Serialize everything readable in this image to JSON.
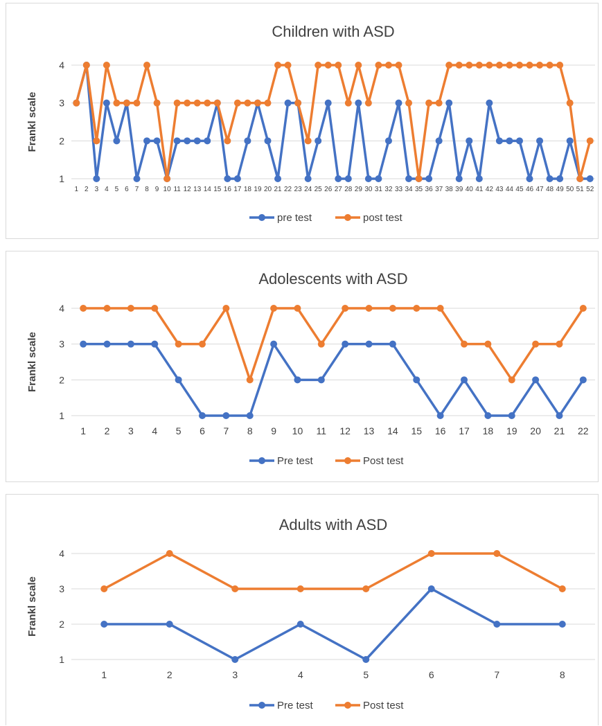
{
  "colors": {
    "pre": "#4472C4",
    "post": "#ED7D31",
    "grid": "#D9D9D9",
    "text": "#404040"
  },
  "chart_data": [
    {
      "type": "line",
      "title": "Children with ASD",
      "xlabel": "",
      "ylabel": "Frankl scale",
      "ylim": [
        1,
        4
      ],
      "yticks": [
        "1",
        "2",
        "3",
        "4"
      ],
      "grid": true,
      "legend_position": "bottom",
      "categories": [
        "1",
        "2",
        "3",
        "4",
        "5",
        "6",
        "7",
        "8",
        "9",
        "10",
        "11",
        "12",
        "13",
        "14",
        "15",
        "16",
        "17",
        "18",
        "19",
        "20",
        "21",
        "22",
        "23",
        "24",
        "25",
        "26",
        "27",
        "28",
        "29",
        "30",
        "31",
        "32",
        "33",
        "34",
        "35",
        "36",
        "37",
        "38",
        "39",
        "40",
        "41",
        "42",
        "43",
        "44",
        "45",
        "46",
        "47",
        "48",
        "49",
        "50",
        "51",
        "52"
      ],
      "series": [
        {
          "name": "pre test",
          "values": [
            3,
            4,
            1,
            3,
            2,
            3,
            1,
            2,
            2,
            1,
            2,
            2,
            2,
            2,
            3,
            1,
            1,
            2,
            3,
            2,
            1,
            3,
            3,
            1,
            2,
            3,
            1,
            1,
            3,
            1,
            1,
            2,
            3,
            1,
            1,
            1,
            2,
            3,
            1,
            2,
            1,
            3,
            2,
            2,
            2,
            1,
            2,
            1,
            1,
            2,
            1,
            1
          ]
        },
        {
          "name": "post test",
          "values": [
            3,
            4,
            2,
            4,
            3,
            3,
            3,
            4,
            3,
            1,
            3,
            3,
            3,
            3,
            3,
            2,
            3,
            3,
            3,
            3,
            4,
            4,
            3,
            2,
            4,
            4,
            4,
            3,
            4,
            3,
            4,
            4,
            4,
            3,
            1,
            3,
            3,
            4,
            4,
            4,
            4,
            4,
            4,
            4,
            4,
            4,
            4,
            4,
            4,
            3,
            1,
            2
          ]
        }
      ]
    },
    {
      "type": "line",
      "title": "Adolescents with ASD",
      "xlabel": "",
      "ylabel": "Frankl scale",
      "ylim": [
        1,
        4
      ],
      "yticks": [
        "1",
        "2",
        "3",
        "4"
      ],
      "grid": true,
      "legend_position": "bottom",
      "categories": [
        "1",
        "2",
        "3",
        "4",
        "5",
        "6",
        "7",
        "8",
        "9",
        "10",
        "11",
        "12",
        "13",
        "14",
        "15",
        "16",
        "17",
        "18",
        "19",
        "20",
        "21",
        "22"
      ],
      "series": [
        {
          "name": "Pre test",
          "values": [
            3,
            3,
            3,
            3,
            2,
            1,
            1,
            1,
            3,
            2,
            2,
            3,
            3,
            3,
            2,
            1,
            2,
            1,
            1,
            2,
            1,
            2
          ]
        },
        {
          "name": "Post test",
          "values": [
            4,
            4,
            4,
            4,
            3,
            3,
            4,
            2,
            4,
            4,
            3,
            4,
            4,
            4,
            4,
            4,
            3,
            3,
            2,
            3,
            3,
            4
          ]
        }
      ]
    },
    {
      "type": "line",
      "title": "Adults with ASD",
      "xlabel": "",
      "ylabel": "Frankl scale",
      "ylim": [
        1,
        4
      ],
      "yticks": [
        "1",
        "2",
        "3",
        "4"
      ],
      "grid": true,
      "legend_position": "bottom",
      "categories": [
        "1",
        "2",
        "3",
        "4",
        "5",
        "6",
        "7",
        "8"
      ],
      "series": [
        {
          "name": "Pre test",
          "values": [
            2,
            2,
            1,
            2,
            1,
            3,
            2,
            2
          ]
        },
        {
          "name": "Post test",
          "values": [
            3,
            4,
            3,
            3,
            3,
            4,
            4,
            3
          ]
        }
      ]
    }
  ]
}
